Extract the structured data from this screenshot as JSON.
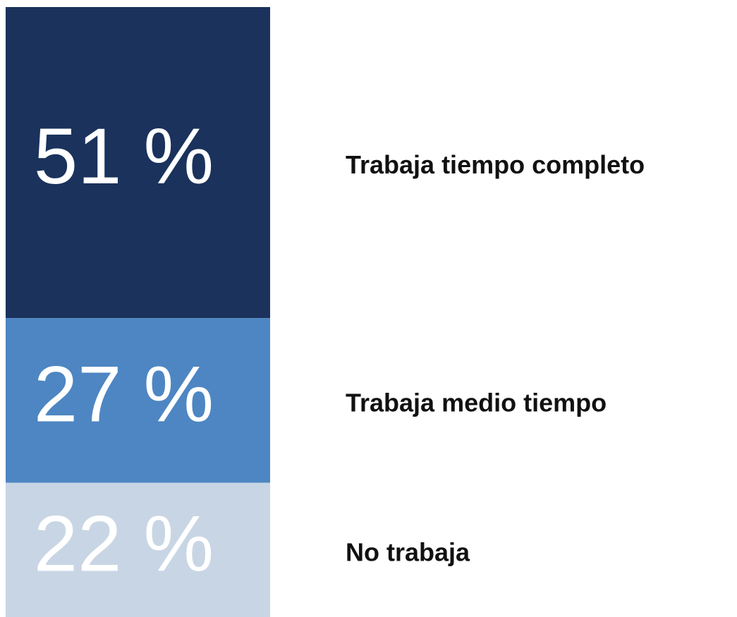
{
  "chart_data": {
    "type": "stacked_bar",
    "series": [
      {
        "name": "Trabaja tiempo completo",
        "color": "#1a325c",
        "values": [
          51
        ],
        "value_labels": [
          "51 %"
        ]
      },
      {
        "name": "Trabaja medio tiempo",
        "color": "#4d86c2",
        "values": [
          27
        ],
        "value_labels": [
          "27 %"
        ]
      },
      {
        "name": "No trabaja",
        "color": "#c8d5e4",
        "values": [
          22
        ],
        "value_labels": [
          "22 %"
        ]
      }
    ],
    "ylim": [
      0,
      100
    ]
  }
}
